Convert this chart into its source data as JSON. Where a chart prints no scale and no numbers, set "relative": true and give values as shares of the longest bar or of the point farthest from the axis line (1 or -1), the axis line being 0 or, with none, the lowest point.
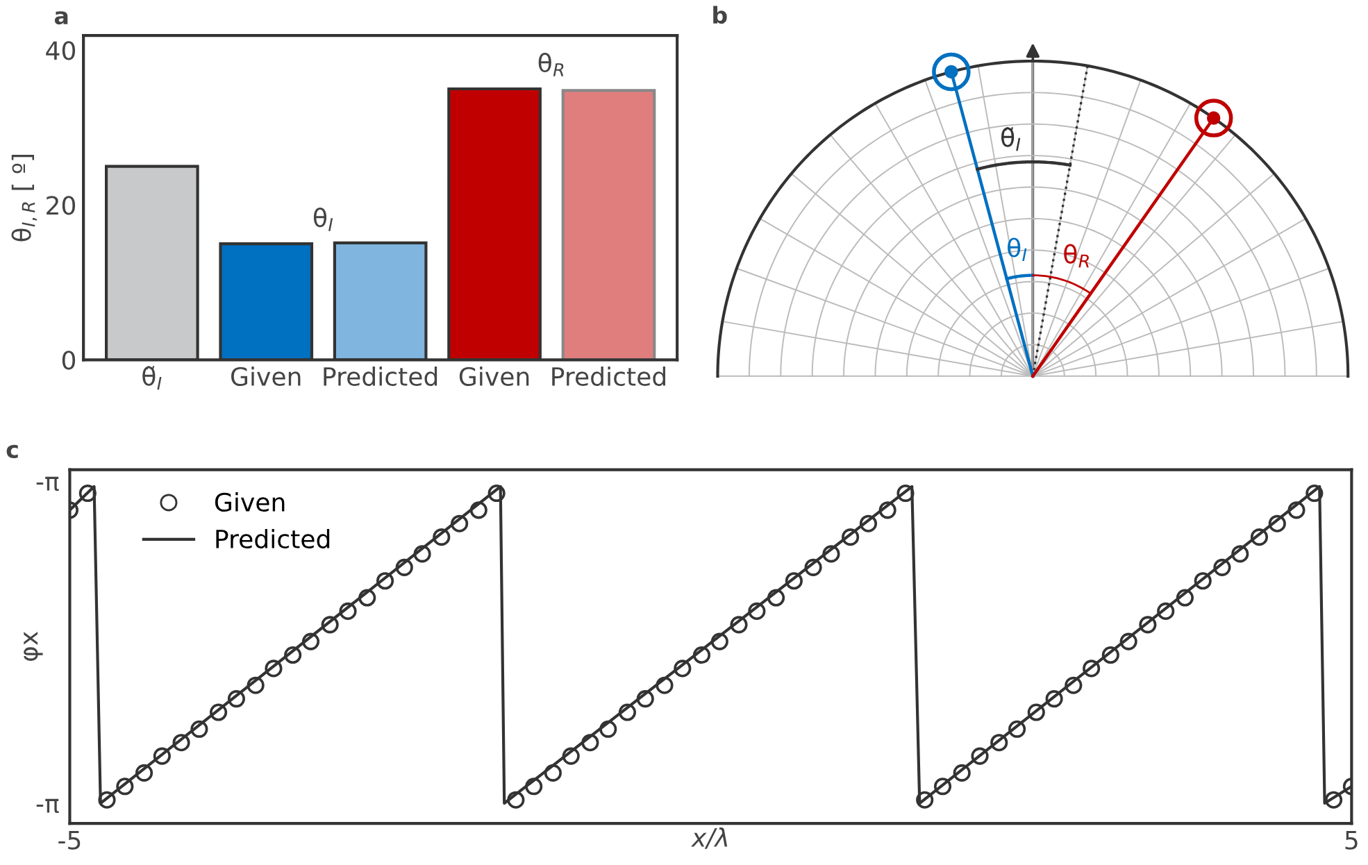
{
  "chart_data": [
    {
      "type": "bar",
      "title": "a",
      "ylabel": "θ$_{I,R}$ [ º]",
      "categories": [
        "θ̃$_{I}$",
        "Given",
        "Predicted",
        "Given",
        "Predicted"
      ],
      "values": [
        25.0,
        15.0,
        15.1,
        35.0,
        34.8
      ],
      "colors": [
        "#c8c9cb",
        "#0070c0",
        "#7fb5de",
        "#c00000",
        "#e07e7e"
      ],
      "ylim": [
        0,
        41.9
      ],
      "yticks": [
        0,
        20,
        40
      ],
      "grid": false,
      "annotations": [
        "θ$_{I}$",
        "θ$_{R}$"
      ]
    },
    {
      "type": "other",
      "title": "b",
      "annotations": [
        "θ̃$_{I}$",
        "θ$_{I}$",
        "θ$_{R}$"
      ]
    },
    {
      "type": "line",
      "title": "c",
      "xlabel": "x/λ",
      "ylabel": "φx",
      "xlim": [
        -5,
        5
      ],
      "xticks": [
        -5,
        5
      ],
      "relative": true,
      "annotations": [
        "-π",
        "-π"
      ],
      "grid": false,
      "legend": "top left",
      "series": [
        {
          "name": "Given",
          "type": "scatter",
          "marker": "circle",
          "color": "#333333",
          "x": [
            -5.0,
            -4.86,
            -4.71,
            -4.57,
            -4.42,
            -4.28,
            -4.13,
            -3.99,
            -3.84,
            -3.7,
            -3.55,
            -3.41,
            -3.26,
            -3.12,
            -2.97,
            -2.83,
            -2.68,
            -2.54,
            -2.39,
            -2.25,
            -2.1,
            -1.96,
            -1.81,
            -1.67,
            -1.52,
            -1.38,
            -1.23,
            -1.09,
            -0.94,
            -0.8,
            -0.65,
            -0.51,
            -0.36,
            -0.22,
            -0.07,
            0.07,
            0.22,
            0.36,
            0.51,
            0.65,
            0.8,
            0.94,
            1.09,
            1.23,
            1.38,
            1.52,
            1.67,
            1.81,
            1.96,
            2.1,
            2.25,
            2.39,
            2.54,
            2.68,
            2.83,
            2.97,
            3.12,
            3.26,
            3.41,
            3.55,
            3.7,
            3.84,
            3.99,
            4.13,
            4.28,
            4.42,
            4.57,
            4.71,
            4.86,
            5.0
          ],
          "values": [
            0.93,
            0.98,
            0.07,
            0.11,
            0.15,
            0.2,
            0.24,
            0.28,
            0.33,
            0.37,
            0.41,
            0.46,
            0.5,
            0.54,
            0.59,
            0.63,
            0.67,
            0.72,
            0.76,
            0.8,
            0.85,
            0.89,
            0.93,
            0.98,
            0.07,
            0.11,
            0.15,
            0.2,
            0.24,
            0.28,
            0.33,
            0.37,
            0.41,
            0.46,
            0.5,
            0.54,
            0.59,
            0.63,
            0.67,
            0.72,
            0.76,
            0.8,
            0.85,
            0.89,
            0.93,
            0.98,
            0.07,
            0.11,
            0.15,
            0.2,
            0.24,
            0.28,
            0.33,
            0.37,
            0.41,
            0.46,
            0.5,
            0.54,
            0.59,
            0.63,
            0.67,
            0.72,
            0.76,
            0.8,
            0.85,
            0.89,
            0.93,
            0.98,
            0.07,
            0.11
          ]
        },
        {
          "name": "Predicted",
          "type": "line",
          "marker": "none",
          "line_style": "solid",
          "color": "#333333",
          "x": [
            -5.0,
            -4.81,
            -4.76,
            -1.64,
            -1.61,
            1.57,
            1.63,
            4.75,
            4.79,
            5.0
          ],
          "values": [
            0.93,
            1,
            0.06,
            1,
            0.06,
            1,
            0.06,
            1,
            0.06,
            0.11
          ]
        }
      ]
    }
  ]
}
